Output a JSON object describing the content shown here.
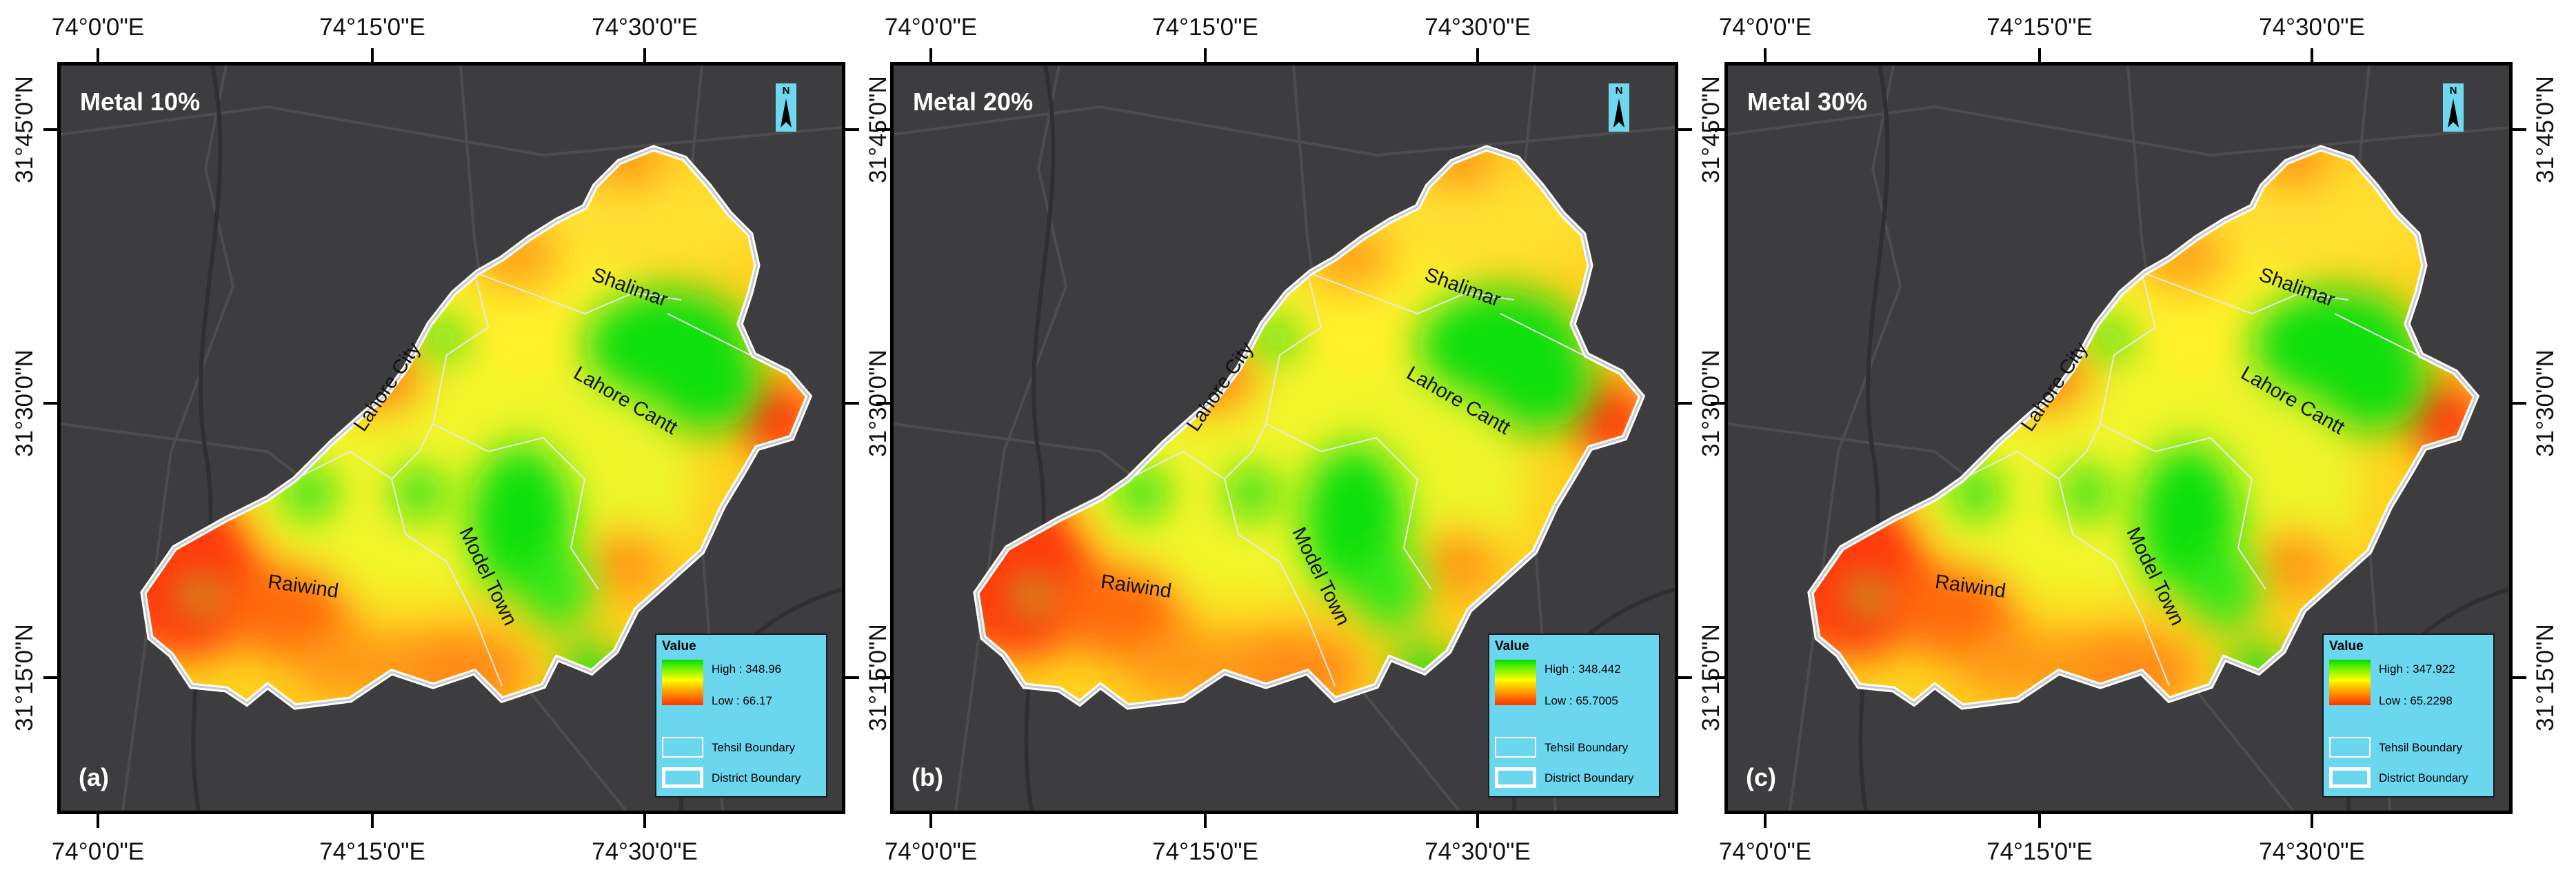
{
  "axis": {
    "top_ticks": [
      "74°0'0\"E",
      "74°15'0\"E",
      "74°30'0\"E"
    ],
    "bottom_ticks": [
      "74°0'0\"E",
      "74°15'0\"E",
      "74°30'0\"E"
    ],
    "left_ticks": [
      "31°45'0\"N",
      "31°30'0\"N",
      "31°15'0\"N"
    ],
    "right_ticks": [
      "31°45'0\"N",
      "31°30'0\"N",
      "31°15'0\"N"
    ]
  },
  "tehsils": {
    "shalimar": "Shalimar",
    "lahore_city": "Lahore City",
    "lahore_cantt": "Lahore Cantt",
    "model_town": "Model Town",
    "raiwind": "Raiwind"
  },
  "legend": {
    "title": "Value",
    "tehsil_boundary": "Tehsil Boundary",
    "district_boundary": "District Boundary"
  },
  "colors": {
    "high": "#00dc00",
    "mid": "#ffff00",
    "low": "#ff3300",
    "basemap": "#3d3d3f",
    "legend_bg": "#6ad7ef"
  },
  "panels": [
    {
      "title": "Metal 10%",
      "label": "(a)",
      "high": "High : 348.96",
      "low": "Low : 66.17"
    },
    {
      "title": "Metal 20%",
      "label": "(b)",
      "high": "High : 348.442",
      "low": "Low : 65.7005"
    },
    {
      "title": "Metal 30%",
      "label": "(c)",
      "high": "High : 347.922",
      "low": "Low : 65.2298"
    }
  ]
}
